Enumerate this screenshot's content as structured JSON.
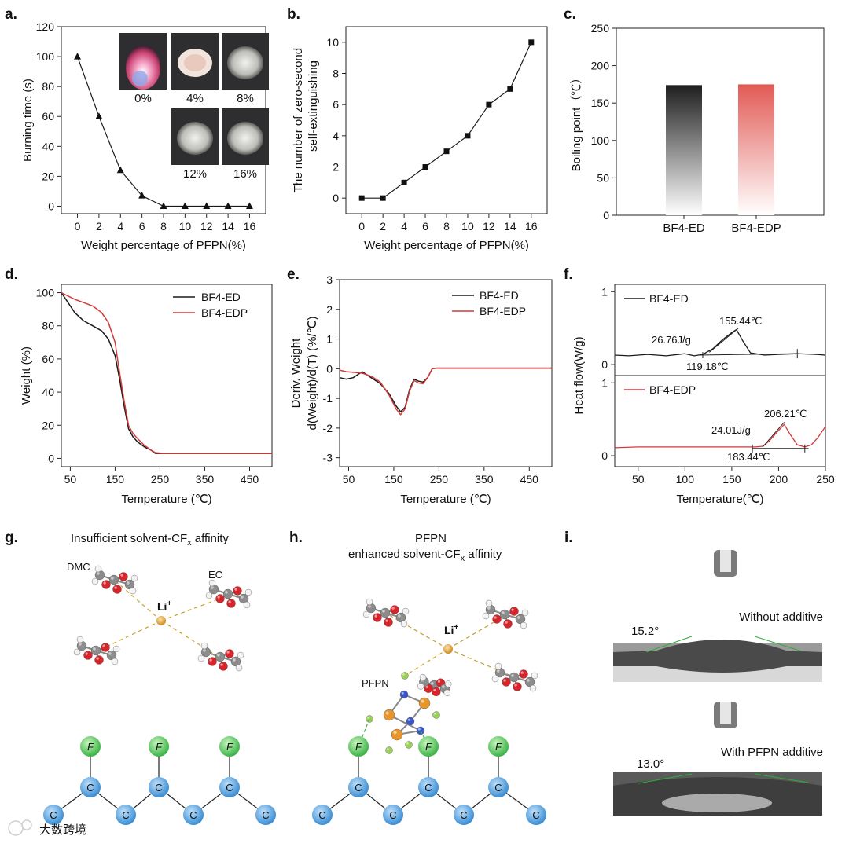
{
  "panels": {
    "a": {
      "label": "a."
    },
    "b": {
      "label": "b."
    },
    "c": {
      "label": "c."
    },
    "d": {
      "label": "d."
    },
    "e": {
      "label": "e."
    },
    "f": {
      "label": "f."
    },
    "g": {
      "label": "g.",
      "title": "Insufficient solvent-CF",
      "title_sub": "x",
      "title_end": " affinity",
      "dmc": "DMC",
      "ec": "EC",
      "li": "Li",
      "li_sup": "+",
      "atom_c": "C",
      "atom_f": "F"
    },
    "h": {
      "label": "h.",
      "title1": "PFPN",
      "title2": "enhanced solvent-CF",
      "title2_sub": "x",
      "title2_end": " affinity",
      "pfpn": "PFPN",
      "li": "Li",
      "li_sup": "+",
      "atom_c": "C",
      "atom_f": "F"
    },
    "i": {
      "label": "i.",
      "without": "Without additive",
      "with": "With PFPN additive",
      "angle1": "15.2°",
      "angle2": "13.0°"
    }
  },
  "watermark": "大数跨境",
  "colors": {
    "black": "#1a1a1a",
    "red": "#d23a3a"
  },
  "chart_data": [
    {
      "id": "a",
      "type": "line",
      "x": [
        0,
        2,
        4,
        6,
        8,
        10,
        12,
        14,
        16
      ],
      "values": [
        100,
        60,
        24,
        7,
        0,
        0,
        0,
        0,
        0
      ],
      "xlabel": "Weight percentage of PFPN(%)",
      "ylabel": "Burning time (s)",
      "xlim": [
        -1.5,
        17.5
      ],
      "ylim": [
        -5,
        120
      ],
      "xticks": [
        0,
        2,
        4,
        6,
        8,
        10,
        12,
        14,
        16
      ],
      "yticks": [
        0,
        20,
        40,
        60,
        80,
        100,
        120
      ],
      "marker": "triangle",
      "inset_labels": [
        "0%",
        "4%",
        "8%",
        "12%",
        "16%"
      ]
    },
    {
      "id": "b",
      "type": "line",
      "x": [
        0,
        2,
        4,
        6,
        8,
        10,
        12,
        14,
        16
      ],
      "values": [
        0,
        0,
        1,
        2,
        3,
        4,
        6,
        7,
        10
      ],
      "xlabel": "Weight percentage of PFPN(%)",
      "ylabel": "The number of zero-second",
      "ylabel2": "self-extinguishing",
      "xlim": [
        -1.5,
        17.5
      ],
      "ylim": [
        -1,
        11
      ],
      "xticks": [
        0,
        2,
        4,
        6,
        8,
        10,
        12,
        14,
        16
      ],
      "yticks": [
        0,
        2,
        4,
        6,
        8,
        10
      ],
      "marker": "square"
    },
    {
      "id": "c",
      "type": "bar",
      "categories": [
        "BF4-ED",
        "BF4-EDP"
      ],
      "values": [
        174,
        175
      ],
      "ylabel": "Boiling point（℃）",
      "ylim": [
        0,
        250
      ],
      "yticks": [
        0,
        50,
        100,
        150,
        200,
        250
      ]
    },
    {
      "id": "d",
      "type": "line",
      "xlabel": "Temperature (℃)",
      "ylabel": "Weight (%)",
      "xlim": [
        30,
        500
      ],
      "ylim": [
        -5,
        105
      ],
      "xticks": [
        50,
        150,
        250,
        350,
        450
      ],
      "yticks": [
        0,
        20,
        40,
        60,
        80,
        100
      ],
      "series": [
        {
          "name": "BF4-ED",
          "color": "#1a1a1a",
          "x": [
            30,
            45,
            60,
            80,
            100,
            120,
            135,
            150,
            160,
            170,
            180,
            190,
            200,
            215,
            230,
            240,
            260,
            300,
            400,
            500
          ],
          "values": [
            100,
            94,
            88,
            83,
            80,
            77,
            72,
            62,
            48,
            32,
            18,
            13,
            10,
            7,
            5,
            3,
            3,
            3,
            3,
            3
          ]
        },
        {
          "name": "BF4-EDP",
          "color": "#d23a3a",
          "x": [
            30,
            45,
            60,
            80,
            100,
            120,
            135,
            150,
            160,
            170,
            180,
            190,
            200,
            215,
            230,
            240,
            260,
            300,
            400,
            500
          ],
          "values": [
            100,
            98,
            96,
            94,
            92,
            88,
            82,
            70,
            52,
            35,
            20,
            15,
            12,
            8,
            5,
            3.5,
            3,
            3,
            3,
            3
          ]
        }
      ]
    },
    {
      "id": "e",
      "type": "line",
      "xlabel": "Temperature (℃)",
      "ylabel": "Deriv. Weight",
      "ylabel2": "d(Weight)/d(T) (%/℃)",
      "xlim": [
        30,
        500
      ],
      "ylim": [
        -3.3,
        3
      ],
      "xticks": [
        50,
        150,
        250,
        350,
        450
      ],
      "yticks": [
        -3,
        -2,
        -1,
        0,
        1,
        2,
        3
      ],
      "series": [
        {
          "name": "BF4-ED",
          "color": "#1a1a1a",
          "x": [
            30,
            45,
            60,
            80,
            100,
            120,
            140,
            155,
            165,
            175,
            185,
            195,
            205,
            215,
            225,
            235,
            245,
            260,
            350,
            500
          ],
          "values": [
            -0.3,
            -0.35,
            -0.3,
            -0.1,
            -0.3,
            -0.5,
            -0.85,
            -1.25,
            -1.45,
            -1.3,
            -0.7,
            -0.35,
            -0.42,
            -0.45,
            -0.3,
            0,
            0.02,
            0.02,
            0.02,
            0.02
          ]
        },
        {
          "name": "BF4-EDP",
          "color": "#d23a3a",
          "x": [
            30,
            45,
            60,
            80,
            100,
            120,
            140,
            155,
            165,
            175,
            185,
            195,
            205,
            215,
            225,
            235,
            245,
            260,
            350,
            500
          ],
          "values": [
            -0.05,
            -0.1,
            -0.12,
            -0.15,
            -0.25,
            -0.45,
            -0.9,
            -1.35,
            -1.55,
            -1.35,
            -0.75,
            -0.4,
            -0.48,
            -0.5,
            -0.3,
            0,
            0.02,
            0.02,
            0.02,
            0.02
          ]
        }
      ]
    },
    {
      "id": "f",
      "type": "line",
      "xlabel": "Temperature(℃)",
      "ylabel": "Heat flow(W/g)",
      "xlim": [
        25,
        250
      ],
      "ylim": [
        -0.15,
        1.1
      ],
      "xticks": [
        50,
        100,
        150,
        200,
        250
      ],
      "subplots": [
        {
          "name": "BF4-ED",
          "color": "#1a1a1a",
          "yticks": [
            0,
            1
          ],
          "x": [
            25,
            40,
            60,
            80,
            100,
            110,
            119,
            130,
            140,
            150,
            155,
            162,
            170,
            185,
            200,
            220,
            240,
            250
          ],
          "values": [
            0.13,
            0.12,
            0.14,
            0.12,
            0.15,
            0.12,
            0.14,
            0.22,
            0.34,
            0.44,
            0.48,
            0.32,
            0.16,
            0.13,
            0.14,
            0.15,
            0.14,
            0.13
          ],
          "annotations": [
            "155.44℃",
            "26.76J/g",
            "119.18℃"
          ]
        },
        {
          "name": "BF4-EDP",
          "color": "#d23a3a",
          "yticks": [
            0,
            1
          ],
          "x": [
            25,
            50,
            100,
            150,
            175,
            183,
            190,
            198,
            206,
            212,
            220,
            228,
            235,
            242,
            250
          ],
          "values": [
            0.11,
            0.12,
            0.12,
            0.12,
            0.12,
            0.13,
            0.2,
            0.32,
            0.43,
            0.3,
            0.15,
            0.12,
            0.15,
            0.25,
            0.4
          ],
          "annotations": [
            "206.21℃",
            "24.01J/g",
            "183.44℃"
          ]
        }
      ]
    }
  ]
}
